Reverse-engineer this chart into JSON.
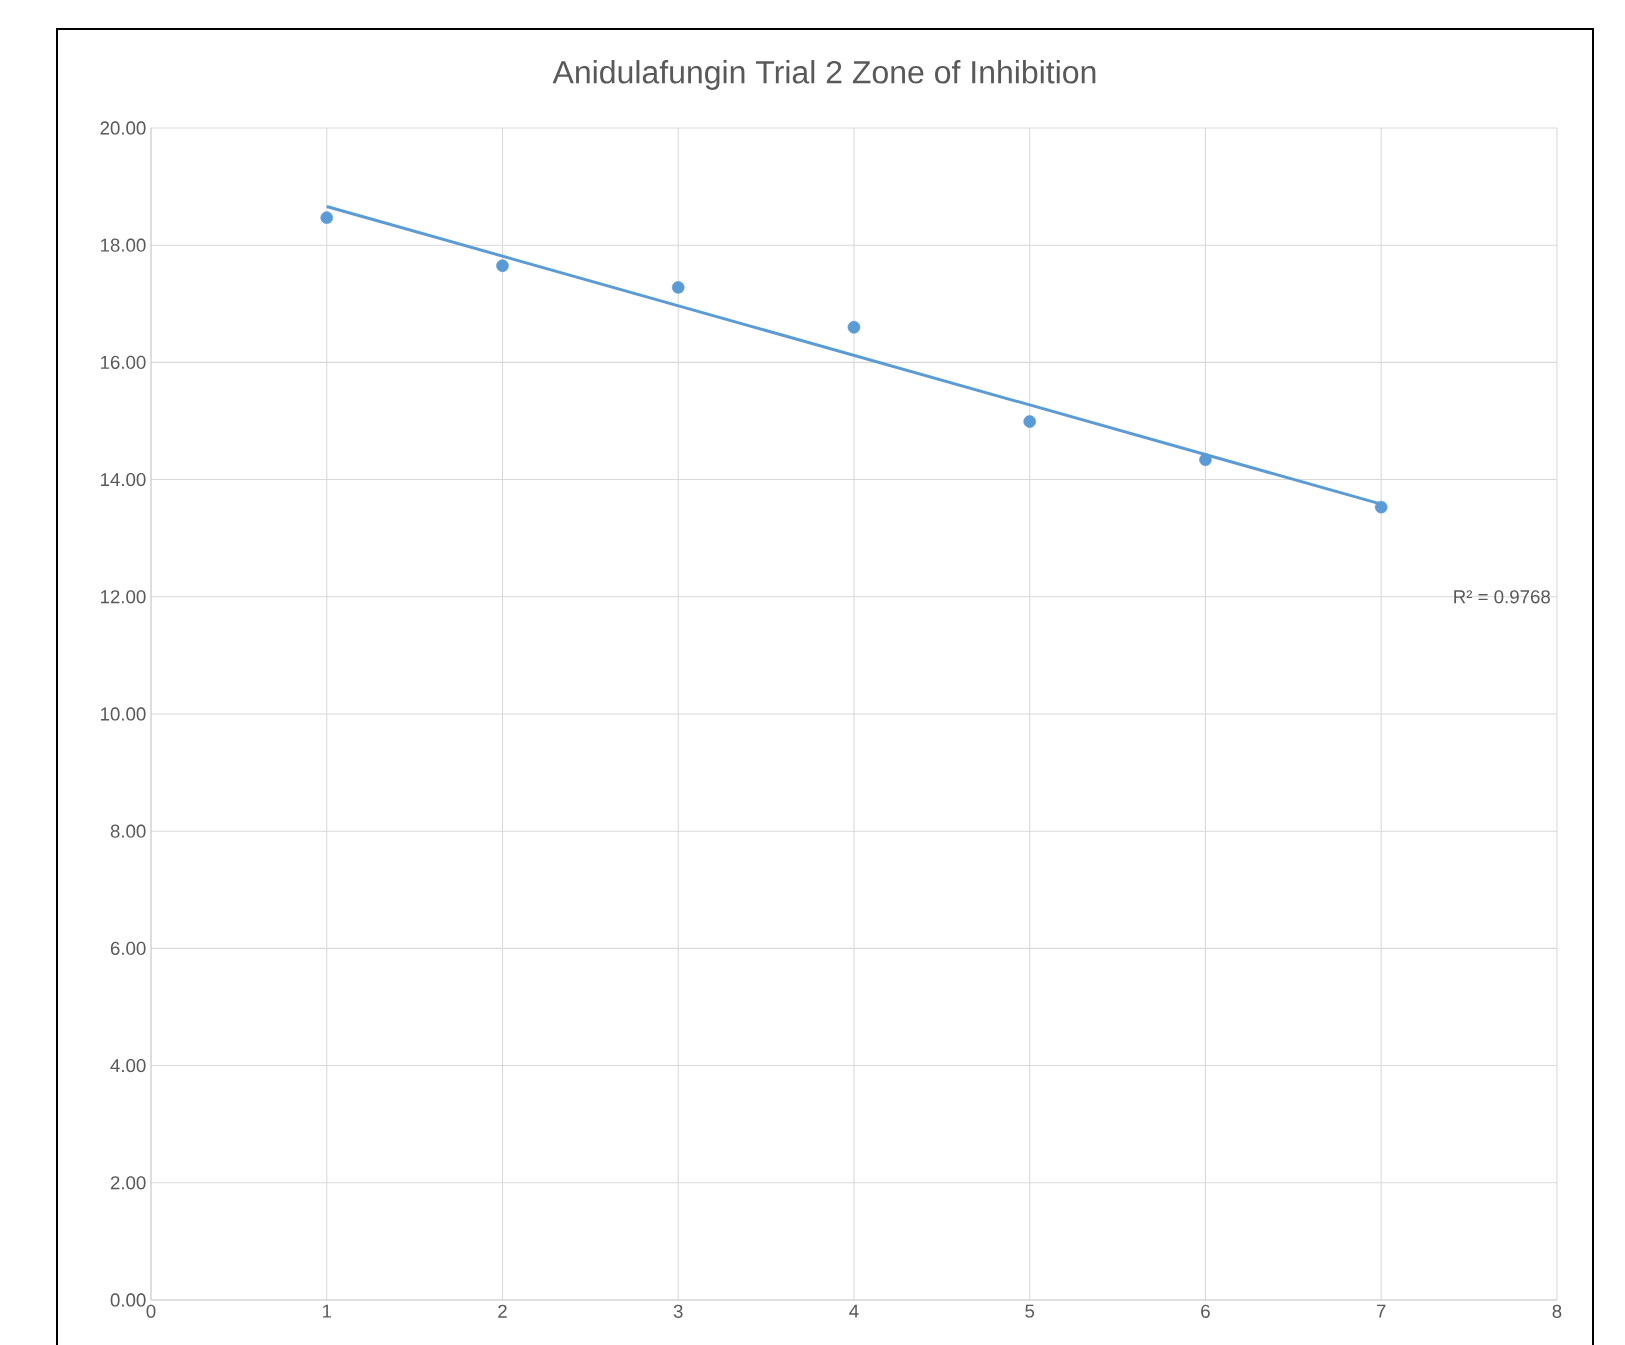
{
  "chart_data": {
    "type": "scatter",
    "title": "Anidulafungin  Trial 2 Zone of Inhibition",
    "series": [
      {
        "x": [
          1,
          2,
          3,
          4,
          5,
          6,
          7
        ],
        "values": [
          18.47,
          17.65,
          17.28,
          16.6,
          14.99,
          14.34,
          13.53
        ],
        "color": "#5b9bd5",
        "marker": "circle"
      },
      {
        "type": "line",
        "x": [
          1,
          7
        ],
        "values": [
          18.66,
          13.58
        ],
        "color": "#5b9bd5",
        "marker": "none"
      }
    ],
    "grid": true,
    "xlim": [
      0,
      8
    ],
    "xticks": [
      0,
      1,
      2,
      3,
      4,
      5,
      6,
      7,
      8
    ],
    "ylim": [
      0,
      20
    ],
    "yticks": [
      {
        "value": 0,
        "label": "0.00"
      },
      {
        "value": 2,
        "label": "2.00"
      },
      {
        "value": 4,
        "label": "4.00"
      },
      {
        "value": 6,
        "label": "6.00"
      },
      {
        "value": 8,
        "label": "8.00"
      },
      {
        "value": 10,
        "label": "10.00"
      },
      {
        "value": 12,
        "label": "12.00"
      },
      {
        "value": 14,
        "label": "14.00"
      },
      {
        "value": 16,
        "label": "16.00"
      },
      {
        "value": 18,
        "label": "18.00"
      },
      {
        "value": 20,
        "label": "20.00"
      }
    ],
    "annotations": [
      "R² = 0.9768"
    ]
  }
}
